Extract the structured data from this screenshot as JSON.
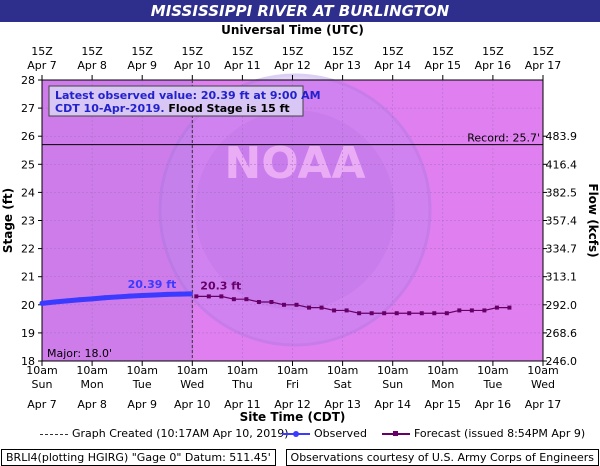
{
  "header": {
    "title": "MISSISSIPPI RIVER AT BURLINGTON"
  },
  "chart_data": {
    "type": "line",
    "top_axis_title": "Universal Time (UTC)",
    "top_ticks": [
      {
        "l1": "15Z",
        "l2": "Apr 7"
      },
      {
        "l1": "15Z",
        "l2": "Apr 8"
      },
      {
        "l1": "15Z",
        "l2": "Apr 9"
      },
      {
        "l1": "15Z",
        "l2": "Apr 10"
      },
      {
        "l1": "15Z",
        "l2": "Apr 11"
      },
      {
        "l1": "15Z",
        "l2": "Apr 12"
      },
      {
        "l1": "15Z",
        "l2": "Apr 13"
      },
      {
        "l1": "15Z",
        "l2": "Apr 14"
      },
      {
        "l1": "15Z",
        "l2": "Apr 15"
      },
      {
        "l1": "15Z",
        "l2": "Apr 16"
      },
      {
        "l1": "15Z",
        "l2": "Apr 17"
      }
    ],
    "xlabel": "Site Time (CDT)",
    "bottom_ticks": [
      {
        "time": "10am",
        "day": "Sun",
        "date": "Apr 7"
      },
      {
        "time": "10am",
        "day": "Mon",
        "date": "Apr 8"
      },
      {
        "time": "10am",
        "day": "Tue",
        "date": "Apr 9"
      },
      {
        "time": "10am",
        "day": "Wed",
        "date": "Apr 10"
      },
      {
        "time": "10am",
        "day": "Thu",
        "date": "Apr 11"
      },
      {
        "time": "10am",
        "day": "Fri",
        "date": "Apr 12"
      },
      {
        "time": "10am",
        "day": "Sat",
        "date": "Apr 13"
      },
      {
        "time": "10am",
        "day": "Sun",
        "date": "Apr 14"
      },
      {
        "time": "10am",
        "day": "Mon",
        "date": "Apr 15"
      },
      {
        "time": "10am",
        "day": "Tue",
        "date": "Apr 16"
      },
      {
        "time": "10am",
        "day": "Wed",
        "date": "Apr 17"
      }
    ],
    "ylabel": "Stage (ft)",
    "ylim": [
      18,
      28
    ],
    "yticks": [
      "18",
      "19",
      "20",
      "21",
      "22",
      "23",
      "24",
      "25",
      "26",
      "27",
      "28"
    ],
    "y2label": "Flow (kcfs)",
    "y2_ticks": [
      {
        "stage": 18,
        "label": "246.0"
      },
      {
        "stage": 19,
        "label": "268.6"
      },
      {
        "stage": 20,
        "label": "292.0"
      },
      {
        "stage": 21,
        "label": "313.1"
      },
      {
        "stage": 22,
        "label": "334.7"
      },
      {
        "stage": 23,
        "label": "357.4"
      },
      {
        "stage": 24,
        "label": "382.5"
      },
      {
        "stage": 25,
        "label": "416.4"
      },
      {
        "stage": 26,
        "label": "483.9"
      }
    ],
    "x_unit": "days after Apr 7 10am CDT",
    "xlim": [
      0,
      10
    ],
    "created_x": 3.0,
    "record": {
      "value": 25.7,
      "label": "Record: 25.7'"
    },
    "major": {
      "value": 18.0,
      "label": "Major: 18.0'"
    },
    "colors": {
      "plot_bg": "#e07ff0",
      "observed": "#3b3bff",
      "forecast": "#660066",
      "record": "#000000"
    },
    "series": [
      {
        "name": "Observed",
        "x": [
          0,
          0.25,
          0.5,
          0.75,
          1.0,
          1.25,
          1.5,
          1.75,
          2.0,
          2.25,
          2.5,
          2.75,
          2.96
        ],
        "values": [
          20.05,
          20.1,
          20.14,
          20.18,
          20.21,
          20.25,
          20.28,
          20.31,
          20.33,
          20.35,
          20.37,
          20.38,
          20.39
        ]
      },
      {
        "name": "Forecast",
        "x": [
          3.08,
          3.33,
          3.58,
          3.83,
          4.08,
          4.33,
          4.58,
          4.83,
          5.08,
          5.33,
          5.58,
          5.83,
          6.08,
          6.33,
          6.58,
          6.83,
          7.08,
          7.33,
          7.58,
          7.83,
          8.08,
          8.33,
          8.58,
          8.83,
          9.08,
          9.33
        ],
        "values": [
          20.3,
          20.3,
          20.3,
          20.2,
          20.2,
          20.1,
          20.1,
          20.0,
          20.0,
          19.9,
          19.9,
          19.8,
          19.8,
          19.7,
          19.7,
          19.7,
          19.7,
          19.7,
          19.7,
          19.7,
          19.7,
          19.8,
          19.8,
          19.8,
          19.9,
          19.9
        ]
      }
    ],
    "data_labels": {
      "observed": "20.39 ft",
      "forecast": "20.3 ft"
    },
    "info_box": {
      "line1": "Latest observed value: 20.39 ft at 9:00 AM",
      "line2a": "CDT 10-Apr-2019.",
      "line2b": "Flood Stage is 15 ft"
    },
    "watermark": "NOAA"
  },
  "legend": {
    "created": "Graph Created (10:17AM Apr 10, 2019)",
    "observed": "Observed",
    "forecast": "Forecast (issued 8:54PM Apr 9)"
  },
  "footer": {
    "left": "BRLI4(plotting HGIRG) \"Gage 0\" Datum: 511.45'",
    "right": "Observations courtesy of U.S. Army Corps of Engineers"
  }
}
